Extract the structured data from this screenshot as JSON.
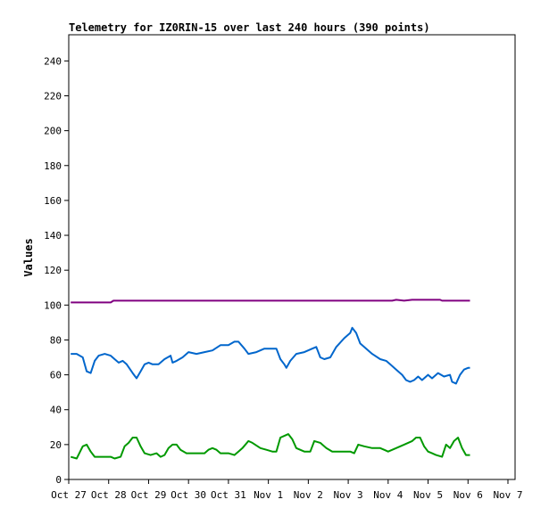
{
  "chart_data": {
    "type": "line",
    "title": "Telemetry for IZ0RIN-15 over last 240 hours (390 points)",
    "xlabel": "",
    "ylabel": "Values",
    "ylim": [
      0,
      255
    ],
    "xlim": [
      0,
      11
    ],
    "grid": false,
    "legend": "none",
    "yticks": [
      0,
      20,
      40,
      60,
      80,
      100,
      120,
      140,
      160,
      180,
      200,
      220,
      240
    ],
    "xticks": [
      {
        "v": 0,
        "label": "Oct 27"
      },
      {
        "v": 1,
        "label": "Oct 28"
      },
      {
        "v": 2,
        "label": "Oct 29"
      },
      {
        "v": 3,
        "label": "Oct 30"
      },
      {
        "v": 4,
        "label": "Oct 31"
      },
      {
        "v": 5,
        "label": "Nov 1"
      },
      {
        "v": 6,
        "label": "Nov 2"
      },
      {
        "v": 7,
        "label": "Nov 3"
      },
      {
        "v": 8,
        "label": "Nov 4"
      },
      {
        "v": 9,
        "label": "Nov 5"
      },
      {
        "v": 10,
        "label": "Nov 6"
      },
      {
        "v": 11,
        "label": "Nov 7"
      }
    ],
    "series": [
      {
        "color": "#800080",
        "points": [
          [
            0.05,
            101.5
          ],
          [
            1.05,
            101.5
          ],
          [
            1.12,
            102.5
          ],
          [
            8.1,
            102.5
          ],
          [
            8.2,
            103
          ],
          [
            8.4,
            102.5
          ],
          [
            8.6,
            103
          ],
          [
            9.3,
            103
          ],
          [
            9.35,
            102.5
          ],
          [
            10.05,
            102.5
          ]
        ]
      },
      {
        "color": "#0066cc",
        "points": [
          [
            0.05,
            72
          ],
          [
            0.2,
            72
          ],
          [
            0.35,
            70
          ],
          [
            0.45,
            62
          ],
          [
            0.55,
            61
          ],
          [
            0.65,
            68
          ],
          [
            0.75,
            71
          ],
          [
            0.9,
            72
          ],
          [
            1.05,
            71
          ],
          [
            1.15,
            69
          ],
          [
            1.25,
            67
          ],
          [
            1.35,
            68
          ],
          [
            1.45,
            66
          ],
          [
            1.6,
            61
          ],
          [
            1.7,
            58
          ],
          [
            1.8,
            62
          ],
          [
            1.9,
            66
          ],
          [
            2.0,
            67
          ],
          [
            2.1,
            66
          ],
          [
            2.25,
            66
          ],
          [
            2.4,
            69
          ],
          [
            2.55,
            71
          ],
          [
            2.6,
            67
          ],
          [
            2.7,
            68
          ],
          [
            2.85,
            70
          ],
          [
            3.0,
            73
          ],
          [
            3.2,
            72
          ],
          [
            3.4,
            73
          ],
          [
            3.6,
            74
          ],
          [
            3.8,
            77
          ],
          [
            4.0,
            77
          ],
          [
            4.15,
            79
          ],
          [
            4.25,
            79
          ],
          [
            4.4,
            75
          ],
          [
            4.5,
            72
          ],
          [
            4.7,
            73
          ],
          [
            4.9,
            75
          ],
          [
            5.2,
            75
          ],
          [
            5.3,
            69
          ],
          [
            5.4,
            66
          ],
          [
            5.45,
            64
          ],
          [
            5.55,
            68
          ],
          [
            5.7,
            72
          ],
          [
            5.9,
            73
          ],
          [
            6.1,
            75
          ],
          [
            6.2,
            76
          ],
          [
            6.3,
            70
          ],
          [
            6.4,
            69
          ],
          [
            6.55,
            70
          ],
          [
            6.7,
            76
          ],
          [
            6.9,
            81
          ],
          [
            7.05,
            84
          ],
          [
            7.1,
            87
          ],
          [
            7.2,
            84
          ],
          [
            7.3,
            78
          ],
          [
            7.45,
            75
          ],
          [
            7.6,
            72
          ],
          [
            7.8,
            69
          ],
          [
            7.95,
            68
          ],
          [
            8.05,
            66
          ],
          [
            8.2,
            63
          ],
          [
            8.35,
            60
          ],
          [
            8.45,
            57
          ],
          [
            8.55,
            56
          ],
          [
            8.65,
            57
          ],
          [
            8.75,
            59
          ],
          [
            8.85,
            57
          ],
          [
            9.0,
            60
          ],
          [
            9.1,
            58
          ],
          [
            9.25,
            61
          ],
          [
            9.4,
            59
          ],
          [
            9.55,
            60
          ],
          [
            9.6,
            56
          ],
          [
            9.7,
            55
          ],
          [
            9.8,
            60
          ],
          [
            9.9,
            63
          ],
          [
            10.0,
            64
          ],
          [
            10.05,
            64
          ]
        ]
      },
      {
        "color": "#009900",
        "points": [
          [
            0.05,
            13
          ],
          [
            0.2,
            12
          ],
          [
            0.35,
            19
          ],
          [
            0.45,
            20
          ],
          [
            0.55,
            16
          ],
          [
            0.65,
            13
          ],
          [
            0.8,
            13
          ],
          [
            0.9,
            13
          ],
          [
            1.05,
            13
          ],
          [
            1.15,
            12
          ],
          [
            1.3,
            13
          ],
          [
            1.4,
            19
          ],
          [
            1.5,
            21
          ],
          [
            1.6,
            24
          ],
          [
            1.7,
            24
          ],
          [
            1.8,
            19
          ],
          [
            1.9,
            15
          ],
          [
            2.05,
            14
          ],
          [
            2.2,
            15
          ],
          [
            2.3,
            13
          ],
          [
            2.4,
            14
          ],
          [
            2.5,
            18
          ],
          [
            2.6,
            20
          ],
          [
            2.7,
            20
          ],
          [
            2.8,
            17
          ],
          [
            2.95,
            15
          ],
          [
            3.1,
            15
          ],
          [
            3.3,
            15
          ],
          [
            3.4,
            15
          ],
          [
            3.5,
            17
          ],
          [
            3.6,
            18
          ],
          [
            3.7,
            17
          ],
          [
            3.8,
            15
          ],
          [
            4.0,
            15
          ],
          [
            4.15,
            14
          ],
          [
            4.25,
            16
          ],
          [
            4.35,
            18
          ],
          [
            4.5,
            22
          ],
          [
            4.6,
            21
          ],
          [
            4.8,
            18
          ],
          [
            4.95,
            17
          ],
          [
            5.1,
            16
          ],
          [
            5.2,
            16
          ],
          [
            5.3,
            24
          ],
          [
            5.4,
            25
          ],
          [
            5.5,
            26
          ],
          [
            5.6,
            23
          ],
          [
            5.7,
            18
          ],
          [
            5.9,
            16
          ],
          [
            6.05,
            16
          ],
          [
            6.15,
            22
          ],
          [
            6.3,
            21
          ],
          [
            6.45,
            18
          ],
          [
            6.6,
            16
          ],
          [
            6.8,
            16
          ],
          [
            6.95,
            16
          ],
          [
            7.05,
            16
          ],
          [
            7.15,
            15
          ],
          [
            7.25,
            20
          ],
          [
            7.4,
            19
          ],
          [
            7.6,
            18
          ],
          [
            7.8,
            18
          ],
          [
            7.9,
            17
          ],
          [
            8.0,
            16
          ],
          [
            8.2,
            18
          ],
          [
            8.4,
            20
          ],
          [
            8.6,
            22
          ],
          [
            8.7,
            24
          ],
          [
            8.8,
            24
          ],
          [
            8.9,
            19
          ],
          [
            9.0,
            16
          ],
          [
            9.1,
            15
          ],
          [
            9.2,
            14
          ],
          [
            9.35,
            13
          ],
          [
            9.45,
            20
          ],
          [
            9.55,
            18
          ],
          [
            9.65,
            22
          ],
          [
            9.75,
            24
          ],
          [
            9.85,
            18
          ],
          [
            9.95,
            14
          ],
          [
            10.05,
            14
          ]
        ]
      }
    ]
  }
}
